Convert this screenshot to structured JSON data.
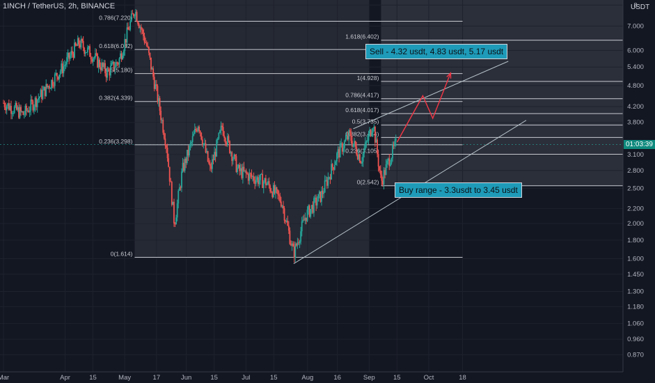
{
  "header": {
    "symbol": "1INCH / TetherUS, 2h, BINANCE"
  },
  "axis": {
    "currency": "USDT",
    "ticks": [
      {
        "label": "8",
        "value": 8.0
      },
      {
        "label": "7.000",
        "value": 7.0
      },
      {
        "label": "6.000",
        "value": 6.0
      },
      {
        "label": "5.400",
        "value": 5.4
      },
      {
        "label": "4.800",
        "value": 4.8
      },
      {
        "label": "4.200",
        "value": 4.2
      },
      {
        "label": "3.800",
        "value": 3.8
      },
      {
        "label": "3.100",
        "value": 3.1
      },
      {
        "label": "2.800",
        "value": 2.8
      },
      {
        "label": "2.500",
        "value": 2.5
      },
      {
        "label": "2.200",
        "value": 2.2
      },
      {
        "label": "2.000",
        "value": 2.0
      },
      {
        "label": "1.800",
        "value": 1.8
      },
      {
        "label": "1.600",
        "value": 1.6
      },
      {
        "label": "1.450",
        "value": 1.45
      },
      {
        "label": "1.300",
        "value": 1.3
      },
      {
        "label": "1.180",
        "value": 1.18
      },
      {
        "label": "1.060",
        "value": 1.06
      },
      {
        "label": "0.960",
        "value": 0.96
      },
      {
        "label": "0.870",
        "value": 0.87
      }
    ],
    "current_price_label": "01:03:39",
    "current_price": 3.3
  },
  "xaxis": {
    "ticks": [
      {
        "label": "Mar",
        "day": 0
      },
      {
        "label": "Apr",
        "day": 31
      },
      {
        "label": "15",
        "day": 45
      },
      {
        "label": "May",
        "day": 61
      },
      {
        "label": "17",
        "day": 77
      },
      {
        "label": "Jun",
        "day": 92
      },
      {
        "label": "15",
        "day": 106
      },
      {
        "label": "Jul",
        "day": 122
      },
      {
        "label": "15",
        "day": 136
      },
      {
        "label": "Aug",
        "day": 153
      },
      {
        "label": "16",
        "day": 168
      },
      {
        "label": "Sep",
        "day": 184
      },
      {
        "label": "15",
        "day": 198
      },
      {
        "label": "Oct",
        "day": 214
      },
      {
        "label": "18",
        "day": 231
      }
    ]
  },
  "fib_set_1": {
    "levels": [
      {
        "label": "0.786(7.220)",
        "value": 7.22
      },
      {
        "label": "0.618(6.032)",
        "value": 6.032
      },
      {
        "label": "0.5(5.180)",
        "value": 5.18
      },
      {
        "label": "0.382(4.339)",
        "value": 4.339
      },
      {
        "label": "0.236(3.298)",
        "value": 3.298
      },
      {
        "label": "0(1.614)",
        "value": 1.614
      }
    ]
  },
  "fib_set_2": {
    "levels": [
      {
        "label": "1.618(6.402)",
        "value": 6.402
      },
      {
        "label": "1(4.928)",
        "value": 4.928
      },
      {
        "label": "0.786(4.417)",
        "value": 4.417
      },
      {
        "label": "0.618(4.017)",
        "value": 4.017
      },
      {
        "label": "0.5(3.735)",
        "value": 3.735
      },
      {
        "label": "0.382(3.454)",
        "value": 3.454
      },
      {
        "label": "0.236(3.105)",
        "value": 3.105
      },
      {
        "label": "0(2.542)",
        "value": 2.542
      }
    ]
  },
  "annotations": {
    "sell": "Sell - 4.32 usdt, 4.83 usdt, 5.17 usdt",
    "buy": "Buy range - 3.3usdt to 3.45 usdt"
  },
  "colors": {
    "up": "#26a69a",
    "down": "#ef5350",
    "arrow": "#f23645",
    "label_box": "#1e9bb8",
    "price_badge": "#0f8a7e",
    "fib_line": "#c9cbd1"
  },
  "chart_data": {
    "type": "candlestick",
    "scale": "log",
    "ylim": [
      0.8,
      8.5
    ],
    "x_unit": "days since Mar 1",
    "key_points": [
      {
        "day": 0,
        "price": 4.3
      },
      {
        "day": 10,
        "price": 4.0
      },
      {
        "day": 20,
        "price": 4.6
      },
      {
        "day": 30,
        "price": 5.4
      },
      {
        "day": 38,
        "price": 6.3
      },
      {
        "day": 45,
        "price": 5.8
      },
      {
        "day": 52,
        "price": 5.2
      },
      {
        "day": 58,
        "price": 5.6
      },
      {
        "day": 66,
        "price": 7.8
      },
      {
        "day": 72,
        "price": 6.2
      },
      {
        "day": 77,
        "price": 4.6
      },
      {
        "day": 82,
        "price": 3.3
      },
      {
        "day": 86,
        "price": 2.0
      },
      {
        "day": 90,
        "price": 2.8
      },
      {
        "day": 98,
        "price": 3.8
      },
      {
        "day": 104,
        "price": 2.8
      },
      {
        "day": 110,
        "price": 3.7
      },
      {
        "day": 118,
        "price": 2.8
      },
      {
        "day": 124,
        "price": 2.7
      },
      {
        "day": 132,
        "price": 2.6
      },
      {
        "day": 140,
        "price": 2.3
      },
      {
        "day": 146,
        "price": 1.65
      },
      {
        "day": 152,
        "price": 2.1
      },
      {
        "day": 160,
        "price": 2.4
      },
      {
        "day": 168,
        "price": 3.1
      },
      {
        "day": 174,
        "price": 3.5
      },
      {
        "day": 180,
        "price": 3.0
      },
      {
        "day": 186,
        "price": 3.8
      },
      {
        "day": 190,
        "price": 2.6
      },
      {
        "day": 194,
        "price": 3.0
      },
      {
        "day": 198,
        "price": 3.35
      }
    ],
    "projection": [
      {
        "day": 198,
        "price": 3.35
      },
      {
        "day": 211,
        "price": 4.5
      },
      {
        "day": 216,
        "price": 3.9
      },
      {
        "day": 225,
        "price": 5.2
      }
    ],
    "channel": {
      "lower": [
        {
          "day": 146,
          "price": 1.55
        },
        {
          "day": 263,
          "price": 3.85
        }
      ],
      "upper": [
        {
          "day": 176,
          "price": 3.65
        },
        {
          "day": 254,
          "price": 5.6
        }
      ]
    }
  }
}
